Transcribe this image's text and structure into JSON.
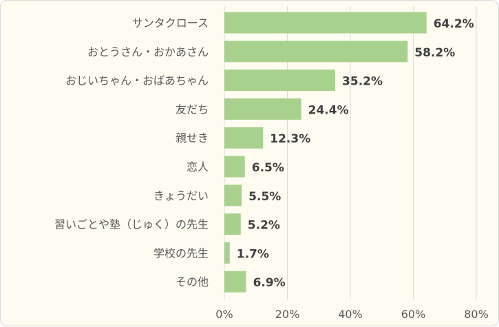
{
  "chart_data": {
    "type": "bar",
    "orientation": "horizontal",
    "categories": [
      "サンタクロース",
      "おとうさん・おかあさん",
      "おじいちゃん・おばあちゃん",
      "友だち",
      "親せき",
      "恋人",
      "きょうだい",
      "習いごとや塾（じゅく）の先生",
      "学校の先生",
      "その他"
    ],
    "values": [
      64.2,
      58.2,
      35.2,
      24.4,
      12.3,
      6.5,
      5.5,
      5.2,
      1.7,
      6.9
    ],
    "data_labels": [
      "64.2%",
      "58.2%",
      "35.2%",
      "24.4%",
      "12.3%",
      "6.5%",
      "5.5%",
      "5.2%",
      "1.7%",
      "6.9%"
    ],
    "xlim": [
      0,
      80
    ],
    "xticks": [
      0,
      20,
      40,
      60,
      80
    ],
    "xtick_labels": [
      "0%",
      "20%",
      "40%",
      "60%",
      "80%"
    ],
    "grid": true,
    "bar_color": "#a9d18e",
    "background_color": "#fefcf0"
  }
}
